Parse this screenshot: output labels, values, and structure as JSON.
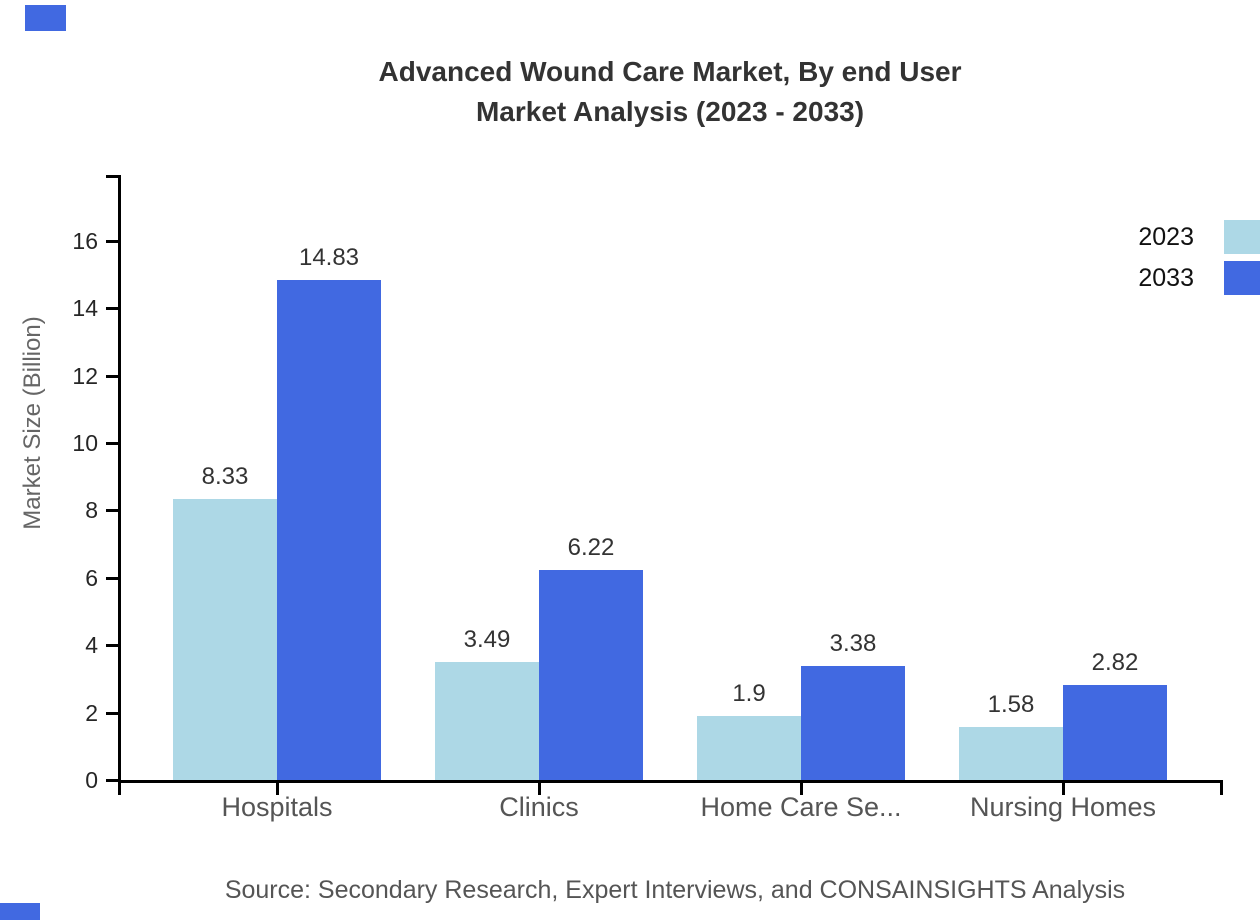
{
  "title": {
    "line1": "Advanced Wound Care Market, By end User",
    "line2": "Market Analysis (2023 - 2033)"
  },
  "source": "Source: Secondary Research, Expert Interviews, and CONSAINSIGHTS Analysis",
  "legend": {
    "items": [
      {
        "label": "2023",
        "color": "#ADD8E6"
      },
      {
        "label": "2033",
        "color": "#4169E1"
      }
    ]
  },
  "colors": {
    "axis": "#000000",
    "series_2023": "#ADD8E6",
    "series_2033": "#4169E1",
    "title_text": "#333333",
    "tick_text": "#262626",
    "category_text": "#555555",
    "value_text": "#333333",
    "ylabel_text": "#666666",
    "source_text": "#555555",
    "stray_mark": "#4169E1"
  },
  "chart_data": {
    "type": "bar",
    "title": "Advanced Wound Care Market, By end User Market Analysis (2023 - 2033)",
    "categories": [
      "Hospitals",
      "Clinics",
      "Home Care Se...",
      "Nursing Homes"
    ],
    "series": [
      {
        "name": "2023",
        "color": "#ADD8E6",
        "values": [
          8.33,
          3.49,
          1.9,
          1.58
        ]
      },
      {
        "name": "2033",
        "color": "#4169E1",
        "values": [
          14.83,
          6.22,
          3.38,
          2.82
        ]
      }
    ],
    "value_labels": [
      [
        "8.33",
        "3.49",
        "1.9",
        "1.58"
      ],
      [
        "14.83",
        "6.22",
        "3.38",
        "2.82"
      ]
    ],
    "xlabel": "",
    "ylabel": "Market Size (Billion)",
    "ylim": [
      0,
      18
    ],
    "yticks": [
      0,
      2,
      4,
      6,
      8,
      10,
      12,
      14,
      16
    ],
    "grid": false,
    "legend_position": "top-right",
    "bar_value_labels_shown": true
  }
}
